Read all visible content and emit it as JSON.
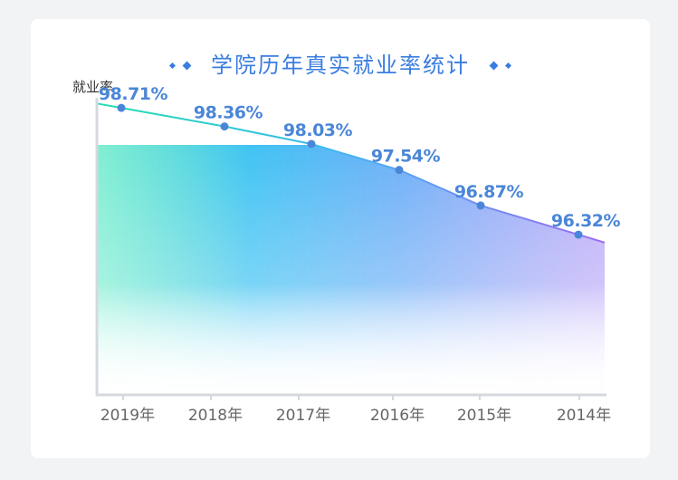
{
  "title": "学院历年真实就业率统计",
  "chart_data": {
    "type": "area",
    "title": "学院历年真实就业率统计",
    "ylabel": "就业率",
    "xlabel": "",
    "categories": [
      "2019年",
      "2018年",
      "2017年",
      "2016年",
      "2015年",
      "2014年"
    ],
    "values": [
      98.71,
      98.36,
      98.03,
      97.54,
      96.87,
      96.32
    ],
    "labels": [
      "98.71%",
      "98.36%",
      "98.03%",
      "97.54%",
      "96.87%",
      "96.32%"
    ],
    "ylim": [
      93.3,
      98.9
    ],
    "grid": false,
    "colors": {
      "line_start": "#1fe0b0",
      "line_mid": "#3fb8f0",
      "line_end": "#9b6cf2",
      "marker": "#4a86d8",
      "axis": "#d5d8de",
      "title": "#3a7de0"
    }
  }
}
